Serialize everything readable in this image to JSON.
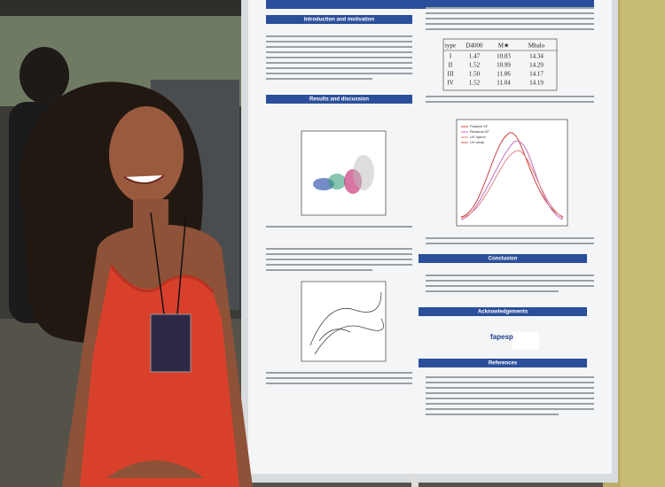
{
  "poster": {
    "sections": [
      "Introduction and motivation",
      "Results and discussion",
      "Conclusion",
      "Acknowledgements",
      "References"
    ],
    "table": {
      "header": [
        "type",
        "D4000",
        "M★",
        "Mhalo"
      ],
      "rows": [
        [
          "I",
          "1.47",
          "10.83",
          "14.34"
        ],
        [
          "II",
          "1.52",
          "10.99",
          "14.29"
        ],
        [
          "III",
          "1.50",
          "11.06",
          "14.17"
        ],
        [
          "IV",
          "1.52",
          "11.04",
          "14.19"
        ]
      ]
    },
    "legend": [
      "Passive SF",
      "Residual SF",
      "UV upturn",
      "UV weak"
    ],
    "logo": "fapesp"
  }
}
